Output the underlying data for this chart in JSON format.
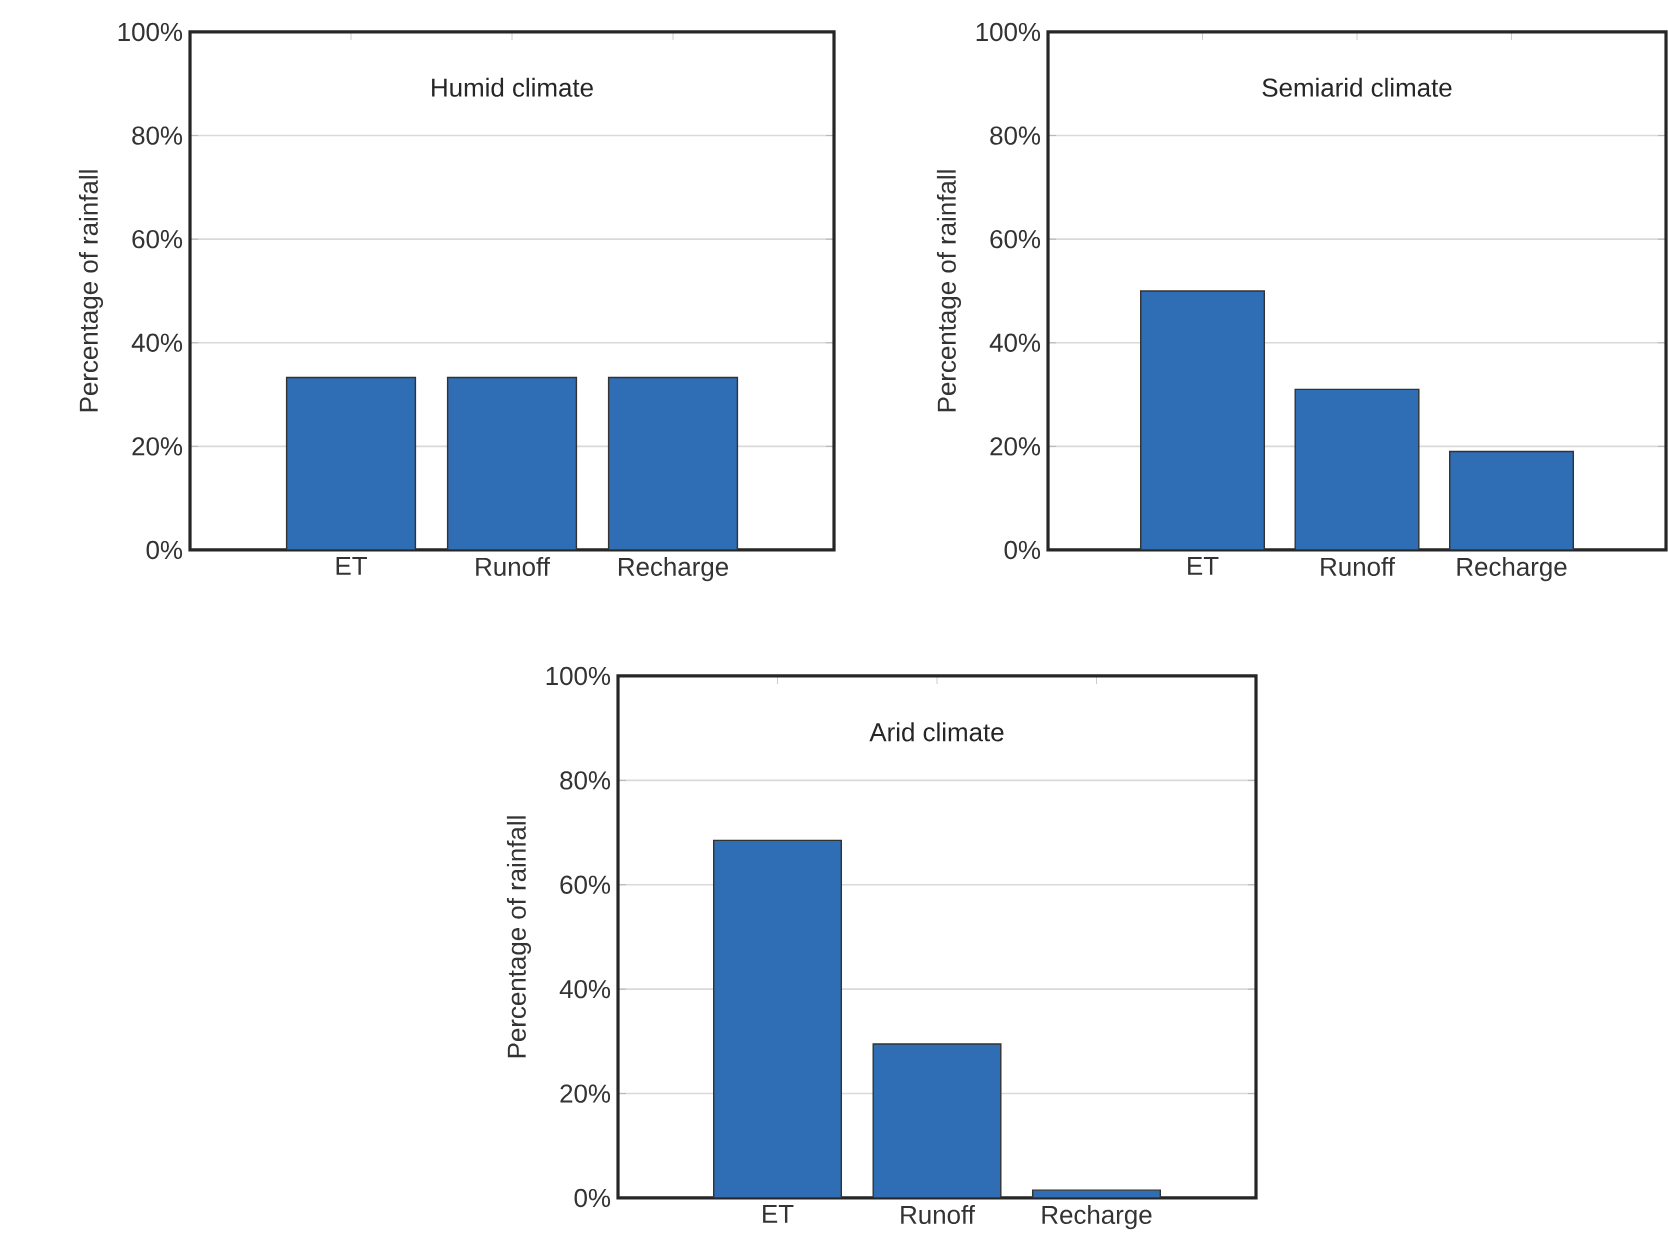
{
  "chart_data": [
    {
      "type": "bar",
      "title": "Humid climate",
      "ylabel": "Percentage of rainfall",
      "categories": [
        "ET",
        "Runoff",
        "Recharge"
      ],
      "values": [
        33.3,
        33.3,
        33.3
      ],
      "color": "#2f6db5",
      "ylim": [
        0,
        100
      ],
      "yticks": [
        {
          "value": 0,
          "label": "0%"
        },
        {
          "value": 20,
          "label": "20%"
        },
        {
          "value": 40,
          "label": "40%"
        },
        {
          "value": 60,
          "label": "60%"
        },
        {
          "value": 80,
          "label": "80%"
        },
        {
          "value": 100,
          "label": "100%"
        }
      ],
      "grid": "y"
    },
    {
      "type": "bar",
      "title": "Semiarid climate",
      "ylabel": "Percentage of rainfall",
      "categories": [
        "ET",
        "Runoff",
        "Recharge"
      ],
      "values": [
        50,
        31,
        19
      ],
      "color": "#2f6db5",
      "ylim": [
        0,
        100
      ],
      "yticks": [
        {
          "value": 0,
          "label": "0%"
        },
        {
          "value": 20,
          "label": "20%"
        },
        {
          "value": 40,
          "label": "40%"
        },
        {
          "value": 60,
          "label": "60%"
        },
        {
          "value": 80,
          "label": "80%"
        },
        {
          "value": 100,
          "label": "100%"
        }
      ],
      "grid": "y"
    },
    {
      "type": "bar",
      "title": "Arid climate",
      "ylabel": "Percentage of rainfall",
      "categories": [
        "ET",
        "Runoff",
        "Recharge"
      ],
      "values": [
        68.5,
        29.5,
        1.5
      ],
      "color": "#2f6db5",
      "ylim": [
        0,
        100
      ],
      "yticks": [
        {
          "value": 0,
          "label": "0%"
        },
        {
          "value": 20,
          "label": "20%"
        },
        {
          "value": 40,
          "label": "40%"
        },
        {
          "value": 60,
          "label": "60%"
        },
        {
          "value": 80,
          "label": "80%"
        },
        {
          "value": 100,
          "label": "100%"
        }
      ],
      "grid": "y"
    }
  ]
}
